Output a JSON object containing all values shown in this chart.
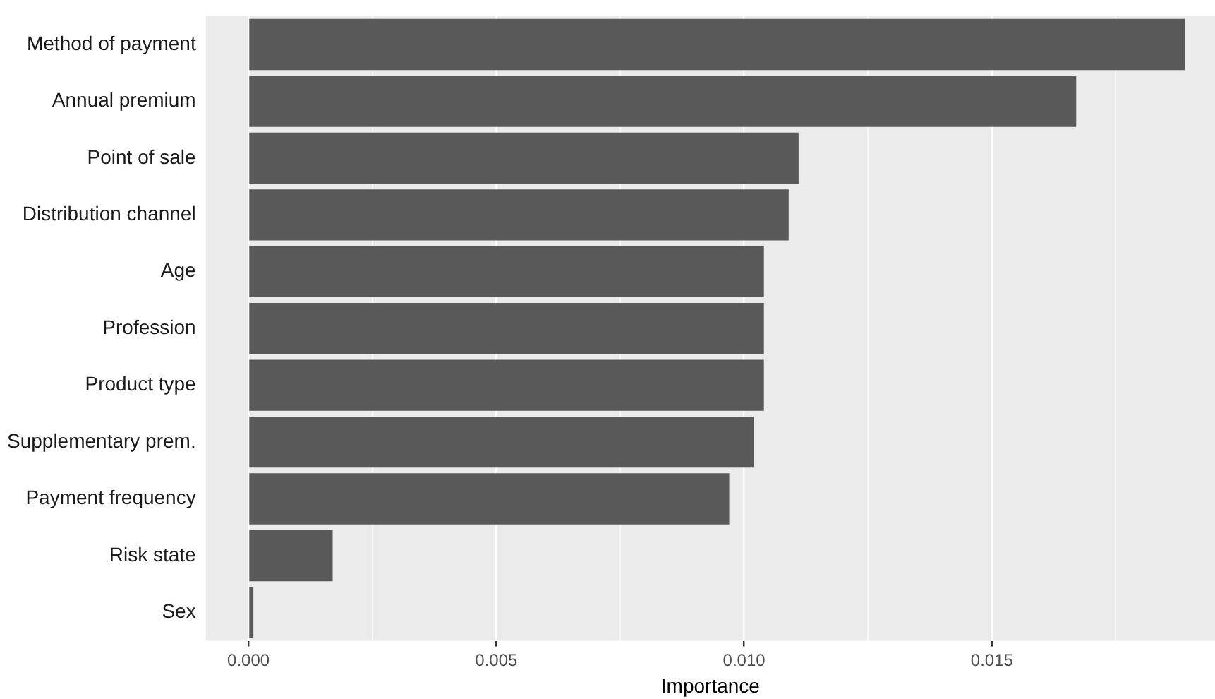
{
  "chart_data": {
    "type": "bar",
    "orientation": "horizontal",
    "xlabel": "Importance",
    "categories": [
      "Method of payment",
      "Annual premium",
      "Point of sale",
      "Distribution channel",
      "Age",
      "Profession",
      "Product type",
      "Supplementary prem.",
      "Payment frequency",
      "Risk state",
      "Sex"
    ],
    "values": [
      0.0189,
      0.0167,
      0.0111,
      0.0109,
      0.0104,
      0.0104,
      0.0104,
      0.0102,
      0.0097,
      0.0017,
      0.0001
    ],
    "color": "#595959",
    "xlim": [
      -0.00086,
      0.0195
    ],
    "xticks": [
      {
        "value": 0,
        "label": "0.000"
      },
      {
        "value": 0.0025,
        "label": null
      },
      {
        "value": 0.005,
        "label": "0.005"
      },
      {
        "value": 0.0075,
        "label": null
      },
      {
        "value": 0.01,
        "label": "0.010"
      },
      {
        "value": 0.0125,
        "label": null
      },
      {
        "value": 0.015,
        "label": "0.015"
      },
      {
        "value": 0.0175,
        "label": null
      }
    ],
    "grid": "x",
    "legend": false
  }
}
